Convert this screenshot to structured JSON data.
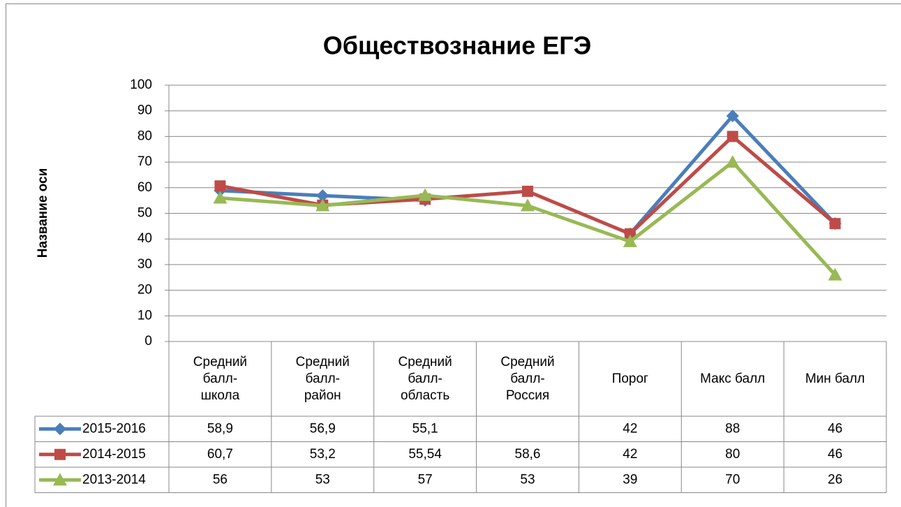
{
  "chart_data": {
    "type": "line",
    "title": "Обществознание ЕГЭ",
    "y_label": "Название оси",
    "categories": [
      "Средний балл-школа",
      "Средний балл-район",
      "Средний балл-область",
      "Средний балл-Россия",
      "Порог",
      "Макс балл",
      "Мин балл"
    ],
    "series": [
      {
        "name": "2015-2016",
        "color": "#4a7ebb",
        "marker": "diamond",
        "values": [
          58.9,
          56.9,
          55.1,
          null,
          42,
          88,
          46
        ],
        "value_labels": [
          "58,9",
          "56,9",
          "55,1",
          null,
          "42",
          "88",
          "46"
        ]
      },
      {
        "name": "2014-2015",
        "color": "#be4b48",
        "marker": "square",
        "values": [
          60.7,
          53.2,
          55.54,
          58.6,
          42,
          80,
          46
        ],
        "value_labels": [
          "60,7",
          "53,2",
          "55,54",
          "58,6",
          "42",
          "80",
          "46"
        ]
      },
      {
        "name": "2013-2014",
        "color": "#98b954",
        "marker": "triangle",
        "values": [
          56,
          53,
          57,
          53,
          39,
          70,
          26
        ]
      }
    ],
    "ylim": [
      0,
      100
    ],
    "yticks": [
      0,
      10,
      20,
      30,
      40,
      50,
      60,
      70,
      80,
      90,
      100
    ],
    "grid": true,
    "data_table": true
  }
}
